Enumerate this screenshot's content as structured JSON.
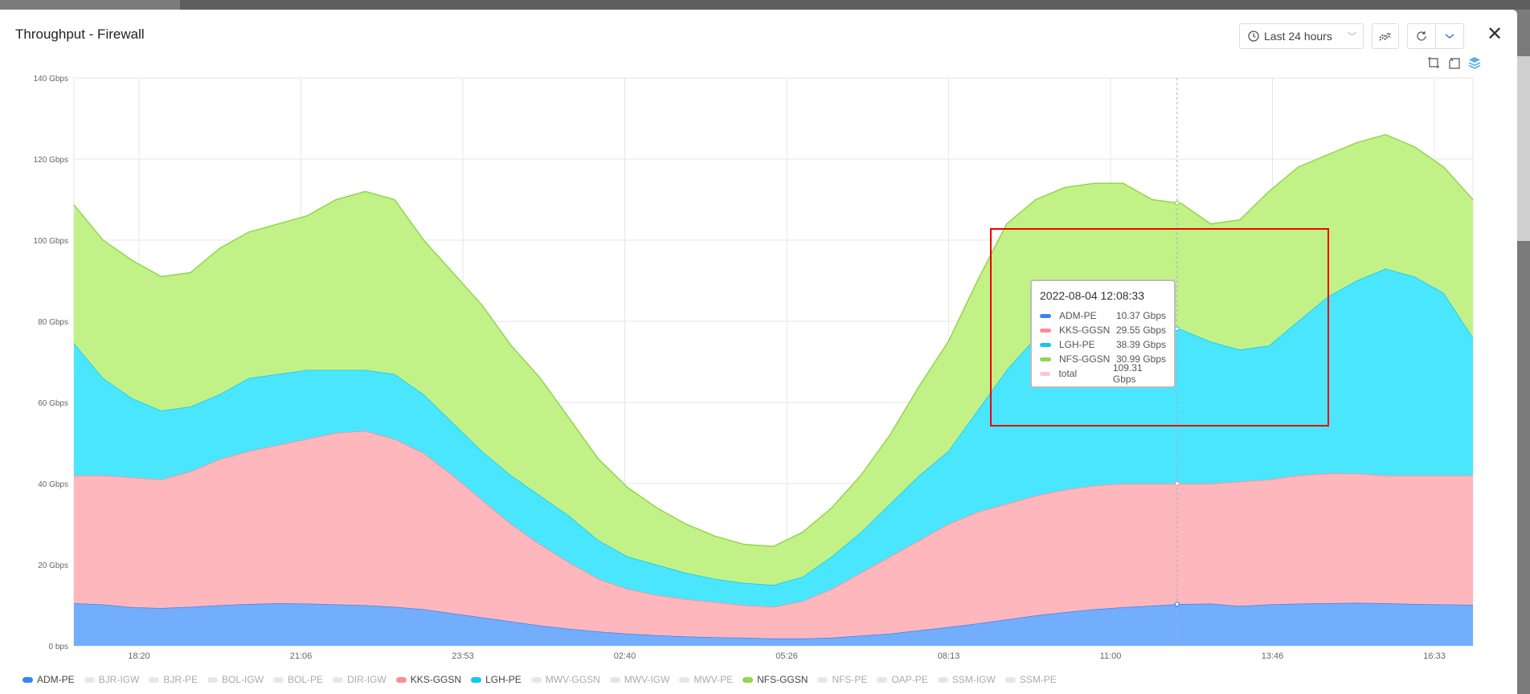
{
  "header": {
    "title": "Throughput - Firewall",
    "time_range": "Last 24 hours",
    "close_label": "✕"
  },
  "icons": {
    "clock": "clock-icon",
    "chart_type": "chart-type-icon",
    "refresh": "refresh-icon",
    "dropdown": "chevron-down-icon",
    "zoom": "zoom-select-icon",
    "zoom_reset": "zoom-reset-icon",
    "stack": "stack-icon"
  },
  "tooltip": {
    "title": "2022-08-04 12:08:33",
    "rows": [
      {
        "name": "ADM-PE",
        "value": "10.37 Gbps",
        "color": "#3b82f6"
      },
      {
        "name": "KKS-GGSN",
        "value": "29.55 Gbps",
        "color": "#fb8f94"
      },
      {
        "name": "LGH-PE",
        "value": "38.39 Gbps",
        "color": "#12c8ec"
      },
      {
        "name": "NFS-GGSN",
        "value": "30.99 Gbps",
        "color": "#91d550"
      },
      {
        "name": "total",
        "value": "109.31 Gbps",
        "color": "#fbc3dc"
      }
    ]
  },
  "chart_data": {
    "type": "area",
    "stacked": true,
    "title": "Throughput - Firewall",
    "x_start": "2022-08-03 17:13",
    "interval_minutes": 30,
    "x_range_hours": [
      0,
      24
    ],
    "hover_hours": 18.925,
    "x_ticks": [
      {
        "h": 1.117,
        "label": "18:20"
      },
      {
        "h": 3.894,
        "label": "21:06"
      },
      {
        "h": 6.672,
        "label": "23:53"
      },
      {
        "h": 9.45,
        "label": "02:40"
      },
      {
        "h": 12.228,
        "label": "05:26"
      },
      {
        "h": 15.006,
        "label": "08:13"
      },
      {
        "h": 17.783,
        "label": "11:00"
      },
      {
        "h": 20.561,
        "label": "13:46"
      },
      {
        "h": 23.339,
        "label": "16:33"
      }
    ],
    "y_ticks": [
      {
        "v": 0,
        "label": "0 bps"
      },
      {
        "v": 20,
        "label": "20 Gbps"
      },
      {
        "v": 40,
        "label": "40 Gbps"
      },
      {
        "v": 60,
        "label": "60 Gbps"
      },
      {
        "v": 80,
        "label": "80 Gbps"
      },
      {
        "v": 100,
        "label": "100 Gbps"
      },
      {
        "v": 120,
        "label": "120 Gbps"
      },
      {
        "v": 140,
        "label": "140 Gbps"
      }
    ],
    "ylim": [
      0,
      140
    ],
    "unit": "Gbps",
    "grid": true,
    "legend_position": "bottom-left",
    "series": [
      {
        "name": "ADM-PE",
        "fill": "#73aefc",
        "line": "#3b82f6",
        "values": [
          10.5,
          10.2,
          9.5,
          9.3,
          9.6,
          10,
          10.3,
          10.5,
          10.4,
          10.2,
          10,
          9.6,
          9,
          8,
          7,
          6,
          5,
          4.2,
          3.5,
          3,
          2.6,
          2.3,
          2.1,
          2,
          1.8,
          1.8,
          2,
          2.5,
          3,
          3.8,
          4.6,
          5.5,
          6.5,
          7.5,
          8.3,
          9,
          9.5,
          9.9,
          10.3,
          10.4,
          9.8,
          10.2,
          10.4,
          10.5,
          10.6,
          10.5,
          10.3,
          10.2,
          10.1
        ]
      },
      {
        "name": "KKS-GGSN",
        "fill": "#feb7bc",
        "line": "#fb8f94",
        "values": [
          31.5,
          31.8,
          32,
          31.7,
          33.4,
          36,
          37.7,
          39,
          40.6,
          42.3,
          43,
          41.4,
          38.5,
          34,
          29,
          24,
          20,
          16.3,
          13,
          11,
          9.9,
          9.2,
          8.7,
          8,
          7.8,
          9.2,
          12,
          15.5,
          19,
          22.2,
          25.4,
          27.5,
          28.5,
          29.5,
          30.2,
          30.5,
          30.5,
          30.1,
          29.7,
          29.6,
          30.7,
          30.8,
          31.6,
          32,
          31.9,
          31.5,
          31.7,
          31.8,
          31.9
        ]
      },
      {
        "name": "LGH-PE",
        "fill": "#4ae6fd",
        "line": "#12c8ec",
        "values": [
          32.6,
          24,
          19.5,
          17,
          16,
          16,
          18,
          17.5,
          17,
          15.5,
          15,
          16,
          14.5,
          13,
          12,
          12,
          12,
          11.5,
          9.5,
          8,
          7.5,
          6.5,
          5.7,
          5.5,
          5.4,
          6,
          8,
          10,
          13,
          16,
          18,
          25,
          33,
          39,
          41.5,
          41.5,
          40,
          39,
          38,
          35,
          32.5,
          33,
          38,
          43.5,
          47.5,
          51,
          49,
          45,
          34
        ]
      },
      {
        "name": "NFS-GGSN",
        "fill": "#c2f287",
        "line": "#91d550",
        "values": [
          34.1,
          34,
          34,
          33,
          33,
          36,
          36,
          37,
          38,
          42,
          44,
          43,
          38,
          37,
          36,
          32,
          29,
          24,
          20,
          17,
          14,
          12,
          10.5,
          9.5,
          9.5,
          11,
          12,
          14,
          17,
          22,
          27,
          32,
          36,
          34,
          33,
          33,
          34,
          31,
          31,
          29,
          32,
          38,
          38,
          35,
          34,
          33,
          32,
          31,
          34
        ]
      }
    ]
  },
  "legend": [
    {
      "name": "ADM-PE",
      "active": true,
      "color": "#3b82f6"
    },
    {
      "name": "BJR-IGW",
      "active": false
    },
    {
      "name": "BJR-PE",
      "active": false
    },
    {
      "name": "BOL-IGW",
      "active": false
    },
    {
      "name": "BOL-PE",
      "active": false
    },
    {
      "name": "DIR-IGW",
      "active": false
    },
    {
      "name": "KKS-GGSN",
      "active": true,
      "color": "#fb8f94"
    },
    {
      "name": "LGH-PE",
      "active": true,
      "color": "#12c8ec"
    },
    {
      "name": "MWV-GGSN",
      "active": false
    },
    {
      "name": "MWV-IGW",
      "active": false
    },
    {
      "name": "MWV-PE",
      "active": false
    },
    {
      "name": "NFS-GGSN",
      "active": true,
      "color": "#91d550"
    },
    {
      "name": "NFS-PE",
      "active": false
    },
    {
      "name": "OAP-PE",
      "active": false
    },
    {
      "name": "SSM-IGW",
      "active": false
    },
    {
      "name": "SSM-PE",
      "active": false
    }
  ]
}
